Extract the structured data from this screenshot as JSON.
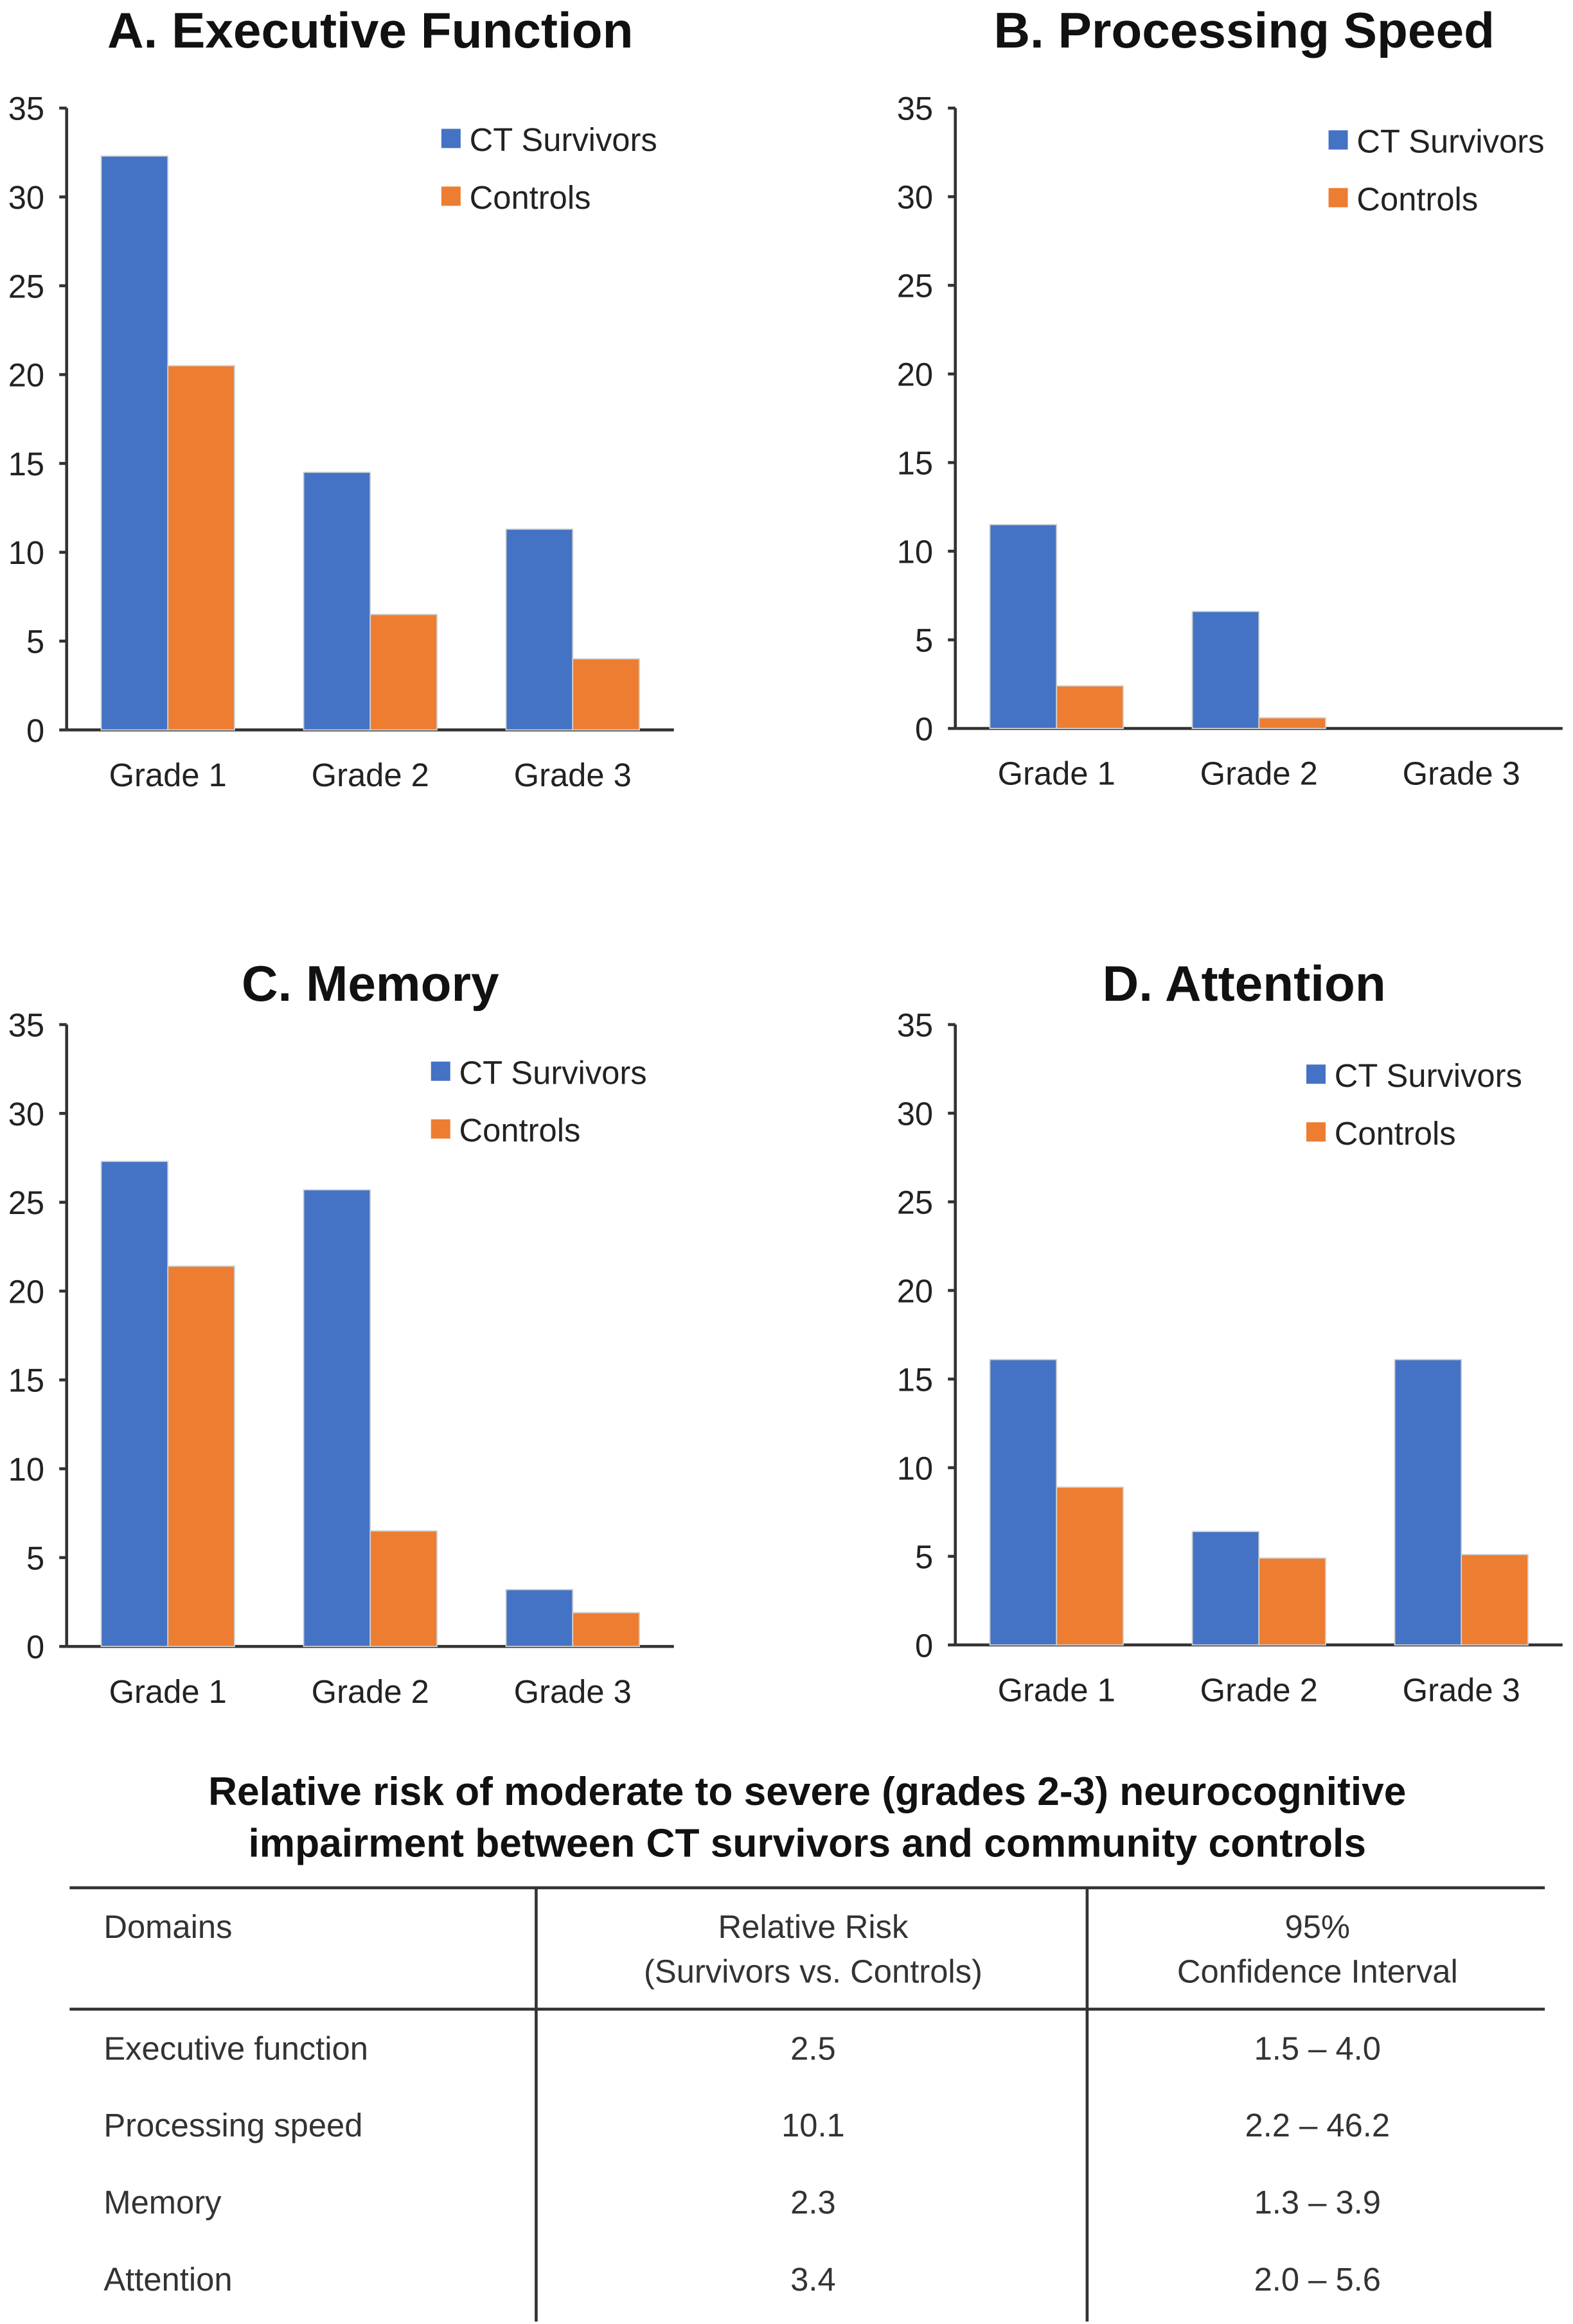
{
  "chart_data": [
    {
      "type": "bar",
      "title": "A. Executive Function",
      "categories": [
        "Grade 1",
        "Grade 2",
        "Grade 3"
      ],
      "series": [
        {
          "name": "CT Survivors",
          "values": [
            32.3,
            14.5,
            11.3
          ]
        },
        {
          "name": "Controls",
          "values": [
            20.5,
            6.5,
            4.0
          ]
        }
      ],
      "ylim": [
        0,
        35
      ],
      "yticks": [
        "0",
        "5",
        "10",
        "15",
        "20",
        "25",
        "30",
        "35"
      ],
      "legend": "top-right",
      "xlabel": "",
      "ylabel": ""
    },
    {
      "type": "bar",
      "title": "B. Processing Speed",
      "categories": [
        "Grade 1",
        "Grade 2",
        "Grade 3"
      ],
      "series": [
        {
          "name": "CT Survivors",
          "values": [
            11.5,
            6.6,
            0
          ]
        },
        {
          "name": "Controls",
          "values": [
            2.4,
            0.6,
            0
          ]
        }
      ],
      "ylim": [
        0,
        35
      ],
      "yticks": [
        "0",
        "5",
        "10",
        "15",
        "20",
        "25",
        "30",
        "35"
      ],
      "legend": "top-right",
      "xlabel": "",
      "ylabel": ""
    },
    {
      "type": "bar",
      "title": "C. Memory",
      "categories": [
        "Grade 1",
        "Grade 2",
        "Grade 3"
      ],
      "series": [
        {
          "name": "CT Survivors",
          "values": [
            27.3,
            25.7,
            3.2
          ]
        },
        {
          "name": "Controls",
          "values": [
            21.4,
            6.5,
            1.9
          ]
        }
      ],
      "ylim": [
        0,
        35
      ],
      "yticks": [
        "0",
        "5",
        "10",
        "15",
        "20",
        "25",
        "30",
        "35"
      ],
      "legend": "top-right",
      "xlabel": "",
      "ylabel": ""
    },
    {
      "type": "bar",
      "title": "D. Attention",
      "categories": [
        "Grade 1",
        "Grade 2",
        "Grade 3"
      ],
      "series": [
        {
          "name": "CT Survivors",
          "values": [
            16.1,
            6.4,
            16.1
          ]
        },
        {
          "name": "Controls",
          "values": [
            8.9,
            4.9,
            5.1
          ]
        }
      ],
      "ylim": [
        0,
        35
      ],
      "yticks": [
        "0",
        "5",
        "10",
        "15",
        "20",
        "25",
        "30",
        "35"
      ],
      "legend": "top-right",
      "xlabel": "",
      "ylabel": ""
    }
  ],
  "colors": {
    "ct_survivors": "#4472C4",
    "controls": "#ED7D31"
  },
  "table": {
    "title_line1": "Relative risk of moderate to severe (grades 2-3) neurocognitive",
    "title_line2": "impairment between CT survivors and community controls",
    "headers": {
      "col1": "Domains",
      "col2_line1": "Relative Risk",
      "col2_line2": "(Survivors vs. Controls)",
      "col3_line1": "95%",
      "col3_line2": "Confidence Interval"
    },
    "rows": [
      {
        "domain": "Executive function",
        "rr": "2.5",
        "ci": "1.5 – 4.0"
      },
      {
        "domain": "Processing speed",
        "rr": "10.1",
        "ci": "2.2 – 46.2"
      },
      {
        "domain": "Memory",
        "rr": "2.3",
        "ci": "1.3 – 3.9"
      },
      {
        "domain": "Attention",
        "rr": "3.4",
        "ci": "2.0 – 5.6"
      }
    ]
  }
}
